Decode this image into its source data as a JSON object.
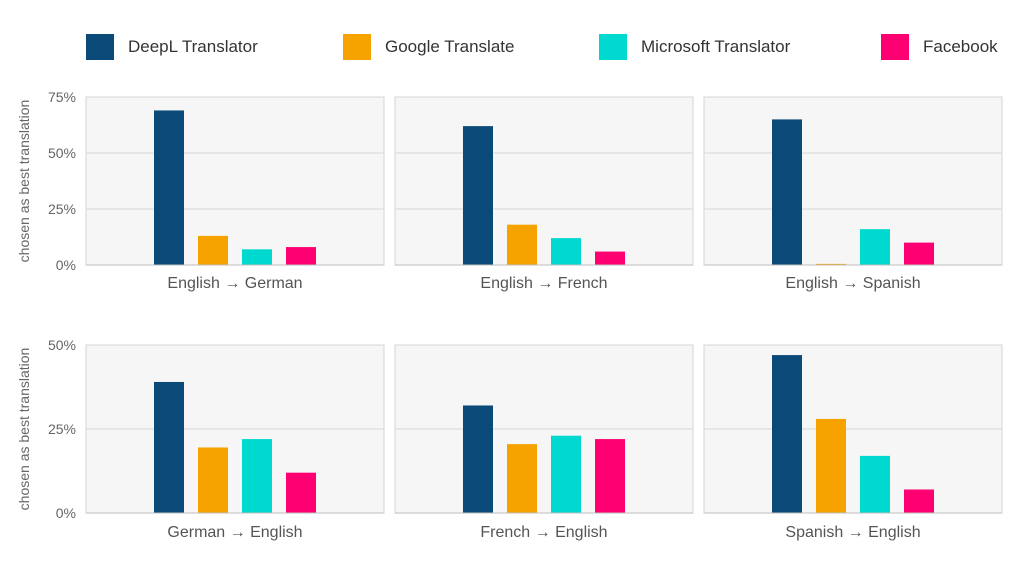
{
  "legend": [
    {
      "name": "DeepL Translator",
      "color": "#0b4a78"
    },
    {
      "name": "Google Translate",
      "color": "#f6a300"
    },
    {
      "name": "Microsoft Translator",
      "color": "#00d9cf"
    },
    {
      "name": "Facebook",
      "color": "#fe0072"
    }
  ],
  "chart_data": [
    {
      "type": "bar",
      "ylabel": "chosen as best translation",
      "ylim": [
        0,
        75
      ],
      "yticks": [
        "0%",
        "25%",
        "50%",
        "75%"
      ],
      "grid": true,
      "panels": [
        {
          "title": "English → German",
          "values": [
            69,
            13,
            7,
            8
          ]
        },
        {
          "title": "English → French",
          "values": [
            62,
            18,
            12,
            6
          ]
        },
        {
          "title": "English → Spanish",
          "values": [
            65,
            0.5,
            16,
            10
          ]
        }
      ]
    },
    {
      "type": "bar",
      "ylabel": "chosen as best translation",
      "ylim": [
        0,
        50
      ],
      "yticks": [
        "0%",
        "25%",
        "50%"
      ],
      "grid": true,
      "panels": [
        {
          "title": "German → English",
          "values": [
            39,
            19.5,
            22,
            12
          ]
        },
        {
          "title": "French → English",
          "values": [
            32,
            20.5,
            23,
            22
          ]
        },
        {
          "title": "Spanish → English",
          "values": [
            47,
            28,
            17,
            7
          ]
        }
      ]
    }
  ]
}
